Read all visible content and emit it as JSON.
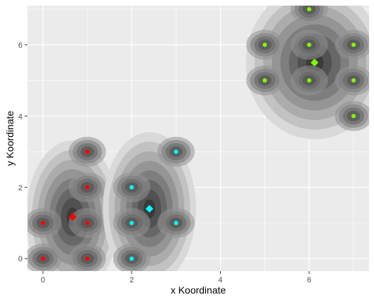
{
  "chart_data": {
    "type": "scatter",
    "title": "",
    "xlabel": "x Koordinate",
    "ylabel": "y Koordinate",
    "xlim": [
      -0.35,
      7.35
    ],
    "ylim": [
      -0.35,
      7.1
    ],
    "x_ticks": [
      0,
      2,
      4,
      6
    ],
    "y_ticks": [
      0,
      2,
      4,
      6
    ],
    "grid": true,
    "legend": "none",
    "panel_background": "#ebebeb",
    "grid_color": "#ffffff",
    "density_fill_light": "#d9d9d9",
    "density_fill_dark": "#3a3a3a",
    "clusters": [
      {
        "color": "#ff0000",
        "points": [
          [
            0,
            0
          ],
          [
            0,
            1
          ],
          [
            1,
            0
          ],
          [
            1,
            1
          ],
          [
            1,
            2
          ],
          [
            1,
            3
          ]
        ],
        "center": [
          0.67,
          1.17
        ]
      },
      {
        "color": "#00ffff",
        "points": [
          [
            2,
            0
          ],
          [
            2,
            1
          ],
          [
            2,
            2
          ],
          [
            3,
            1
          ],
          [
            3,
            3
          ]
        ],
        "center": [
          2.4,
          1.4
        ]
      },
      {
        "color": "#7fff00",
        "points": [
          [
            5,
            5
          ],
          [
            5,
            6
          ],
          [
            6,
            5
          ],
          [
            6,
            6
          ],
          [
            6,
            7
          ],
          [
            7,
            4
          ],
          [
            7,
            5
          ],
          [
            7,
            6
          ]
        ],
        "center": [
          6.12,
          5.5
        ]
      }
    ]
  }
}
